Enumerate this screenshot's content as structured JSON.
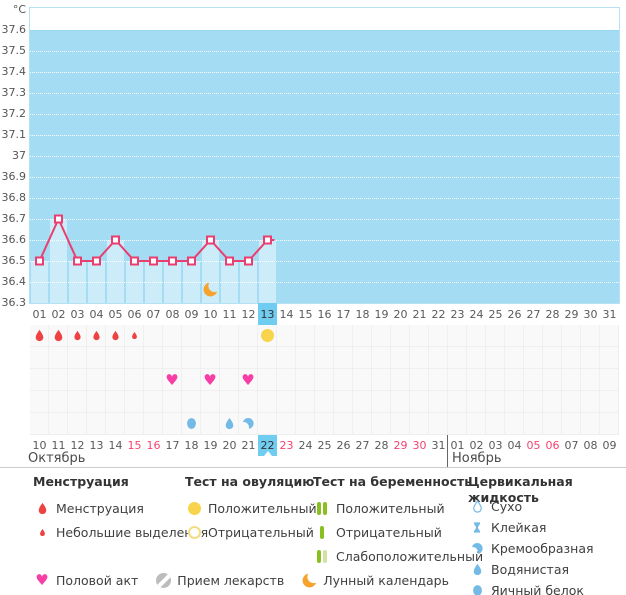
{
  "colors": {
    "chart-bg": "#a4ddf3",
    "bar": "#cdecfa",
    "plot-border": "#b5e1f2",
    "line": "#e93e6f",
    "today": "#70cdf1",
    "menstruation": "#ee4141",
    "ovulation": "#f8d44c",
    "ovulation-outline": "#f4dc85",
    "intercourse": "#f73ea5",
    "cervical": "#74bae6",
    "lunar": "#f6a32e",
    "pregnancy": "#8abf22",
    "pregnancy-weak": "#cfe3a2",
    "weekend": "#f5436f",
    "medication": "#bcbcbc"
  },
  "chart_data": {
    "type": "line",
    "unit_label": "°C",
    "ylim": [
      36.3,
      37.6
    ],
    "y_ticks": [
      "37.6",
      "37.5",
      "37.4",
      "37.3",
      "37.2",
      "37.1",
      "37",
      "36.9",
      "36.8",
      "36.7",
      "36.6",
      "36.5",
      "36.4",
      "36.3"
    ],
    "x_cycle_days": [
      "01",
      "02",
      "03",
      "04",
      "05",
      "06",
      "07",
      "08",
      "09",
      "10",
      "11",
      "12",
      "13",
      "14",
      "15",
      "16",
      "17",
      "18",
      "19",
      "20",
      "21",
      "22",
      "23",
      "24",
      "25",
      "26",
      "27",
      "28",
      "29",
      "30",
      "31"
    ],
    "today_cycle_day_index": 12,
    "grid": "horizontal-dotted",
    "series": [
      {
        "name": "temperature",
        "points": [
          {
            "day": 1,
            "temp": 36.5
          },
          {
            "day": 2,
            "temp": 36.7
          },
          {
            "day": 3,
            "temp": 36.5
          },
          {
            "day": 4,
            "temp": 36.5
          },
          {
            "day": 5,
            "temp": 36.6
          },
          {
            "day": 6,
            "temp": 36.5
          },
          {
            "day": 7,
            "temp": 36.5
          },
          {
            "day": 8,
            "temp": 36.5
          },
          {
            "day": 9,
            "temp": 36.5
          },
          {
            "day": 10,
            "temp": 36.6
          },
          {
            "day": 11,
            "temp": 36.5
          },
          {
            "day": 12,
            "temp": 36.5
          },
          {
            "day": 13,
            "temp": 36.6
          }
        ]
      }
    ]
  },
  "calendar": {
    "date_labels": [
      "10",
      "11",
      "12",
      "13",
      "14",
      "15",
      "16",
      "17",
      "18",
      "19",
      "20",
      "21",
      "22",
      "23",
      "24",
      "25",
      "26",
      "27",
      "28",
      "29",
      "30",
      "31",
      "01",
      "02",
      "03",
      "04",
      "05",
      "06",
      "07",
      "08",
      "09"
    ],
    "weekend_indices": [
      5,
      6,
      13,
      19,
      20,
      26,
      27
    ],
    "today_index": 12,
    "month_break_index": 22,
    "months": [
      {
        "name": "Октябрь"
      },
      {
        "name": "Ноябрь"
      }
    ]
  },
  "events": {
    "menstruation": [
      {
        "day": 1,
        "size": "large"
      },
      {
        "day": 2,
        "size": "large"
      },
      {
        "day": 3,
        "size": "medium"
      },
      {
        "day": 4,
        "size": "medium"
      },
      {
        "day": 5,
        "size": "medium"
      },
      {
        "day": 6,
        "size": "small"
      }
    ],
    "ovulation_test_positive_days": [
      13
    ],
    "intercourse_days": [
      8,
      10,
      12
    ],
    "cervical_fluid": [
      {
        "day": 9,
        "type": "eggwhite"
      },
      {
        "day": 11,
        "type": "watery"
      },
      {
        "day": 12,
        "type": "creamy"
      }
    ],
    "lunar_calendar_days": [
      10
    ]
  },
  "legend": {
    "sections": [
      {
        "title": "Менструация",
        "items": [
          {
            "icon": "menses-large",
            "label": "Менструация"
          },
          {
            "icon": "menses-small",
            "label": "Небольшие выделения"
          }
        ]
      },
      {
        "title": "Тест на овуляцию",
        "items": [
          {
            "icon": "ovulation-positive",
            "label": "Положительный"
          },
          {
            "icon": "ovulation-negative",
            "label": "Отрицательный"
          }
        ]
      },
      {
        "title": "Тест на беременность",
        "items": [
          {
            "icon": "preg-positive",
            "label": "Положительный"
          },
          {
            "icon": "preg-negative",
            "label": "Отрицательный"
          },
          {
            "icon": "preg-weak",
            "label": "Слабоположительный"
          }
        ]
      },
      {
        "title": "Цервикальная жидкость",
        "items": [
          {
            "icon": "cf-dry",
            "label": "Сухо"
          },
          {
            "icon": "cf-sticky",
            "label": "Клейкая"
          },
          {
            "icon": "cf-creamy",
            "label": "Кремообразная"
          },
          {
            "icon": "cf-watery",
            "label": "Водянистая"
          },
          {
            "icon": "cf-eggwhite",
            "label": "Яичный белок"
          }
        ]
      }
    ],
    "footer_items": [
      {
        "icon": "heart",
        "label": "Половой акт"
      },
      {
        "icon": "pill",
        "label": "Прием лекарств"
      },
      {
        "icon": "moon",
        "label": "Лунный календарь"
      }
    ]
  }
}
